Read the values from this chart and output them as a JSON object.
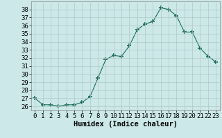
{
  "xlabel": "Humidex (Indice chaleur)",
  "x": [
    0,
    1,
    2,
    3,
    4,
    5,
    6,
    7,
    8,
    9,
    10,
    11,
    12,
    13,
    14,
    15,
    16,
    17,
    18,
    19,
    20,
    21,
    22,
    23
  ],
  "y": [
    27.0,
    26.2,
    26.2,
    26.0,
    26.2,
    26.2,
    26.5,
    27.2,
    29.5,
    31.8,
    32.3,
    32.2,
    33.5,
    35.5,
    36.2,
    36.5,
    38.2,
    38.0,
    37.2,
    35.2,
    35.2,
    33.2,
    32.2,
    31.5
  ],
  "ylim": [
    25.5,
    39.0
  ],
  "yticks": [
    26,
    27,
    28,
    29,
    30,
    31,
    32,
    33,
    34,
    35,
    36,
    37,
    38
  ],
  "xlim": [
    -0.5,
    23.5
  ],
  "xticks": [
    0,
    1,
    2,
    3,
    4,
    5,
    6,
    7,
    8,
    9,
    10,
    11,
    12,
    13,
    14,
    15,
    16,
    17,
    18,
    19,
    20,
    21,
    22,
    23
  ],
  "line_color": "#1a6b5a",
  "marker": "+",
  "marker_size": 4,
  "bg_color": "#cce8e8",
  "grid_color": "#b0c8c8",
  "tick_label_fontsize": 6.5,
  "xlabel_fontsize": 7.5
}
